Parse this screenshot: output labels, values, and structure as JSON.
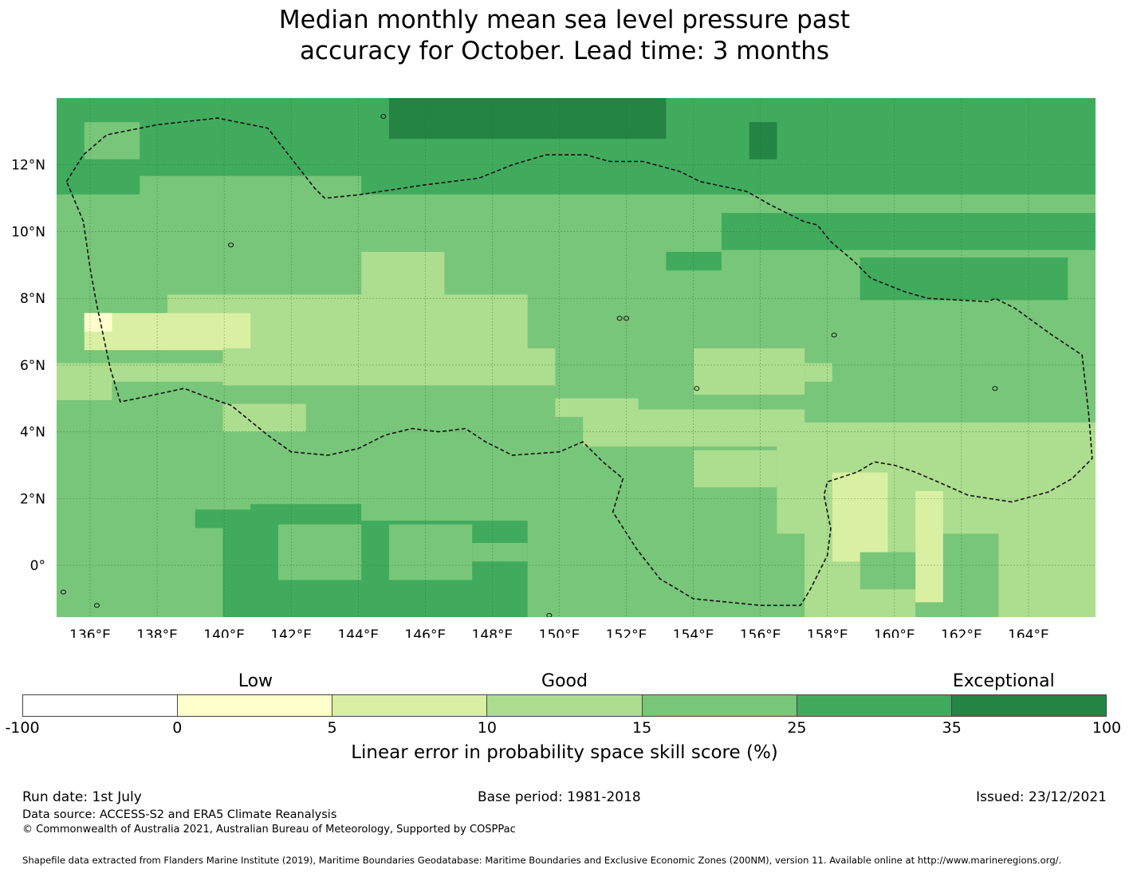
{
  "title_lines": [
    "Median monthly mean sea level pressure past",
    "accuracy for October. Lead time: 3 months"
  ],
  "map": {
    "lon_range": [
      135.0,
      166.0
    ],
    "lat_range": [
      -1.55,
      14.0
    ],
    "lon_ticks": [
      "136°E",
      "138°E",
      "140°E",
      "142°E",
      "144°E",
      "146°E",
      "148°E",
      "150°E",
      "152°E",
      "154°E",
      "156°E",
      "158°E",
      "160°E",
      "162°E",
      "164°E"
    ],
    "lon_tick_values": [
      136,
      138,
      140,
      142,
      144,
      146,
      148,
      150,
      152,
      154,
      156,
      158,
      160,
      162,
      164
    ],
    "lat_ticks": [
      "12°N",
      "10°N",
      "8°N",
      "6°N",
      "4°N",
      "2°N",
      "0°"
    ],
    "lat_tick_values": [
      12,
      10,
      8,
      6,
      4,
      2,
      0
    ],
    "grid": true,
    "eez_boundary": "dashed",
    "legend": "bottom"
  },
  "colorbar": {
    "category_labels": [
      {
        "text": "Low",
        "at": 0.215
      },
      {
        "text": "Good",
        "at": 0.5
      },
      {
        "text": "Exceptional",
        "at": 0.905
      }
    ],
    "ticks": [
      "-100",
      "0",
      "5",
      "10",
      "15",
      "25",
      "35",
      "100"
    ],
    "colors": [
      "#ffffff",
      "#ffffcc",
      "#d9f0a3",
      "#addd8e",
      "#78c679",
      "#41ab5d",
      "#238443"
    ],
    "title": "Linear error in probability space skill score (%)"
  },
  "footer": {
    "run_date": "Run date: 1st July",
    "base_period": "Base period: 1981-2018",
    "issued": "Issued: 23/12/2021",
    "data_source": "Data source: ACCESS-S2 and ERA5 Climate Reanalysis",
    "copyright": "© Commonwealth of Australia 2021, Australian Bureau of Meteorology, Supported by COSPPac",
    "shapefile": "Shapefile data extracted from Flanders Marine Institute (2019), Maritime Boundaries Geodatabase: Maritime Boundaries and Exclusive Economic Zones (200NM), version 11. Available online at http://www.marineregions.org/."
  }
}
